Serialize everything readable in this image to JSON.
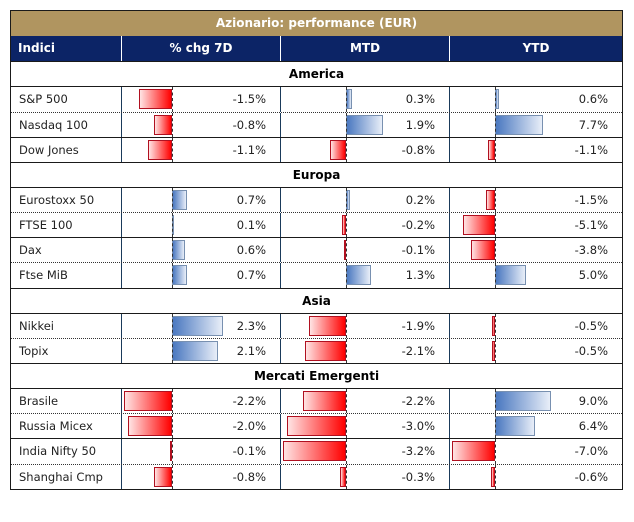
{
  "title": "Azionario: performance (EUR)",
  "columns": [
    "Indici",
    "% chg 7D",
    "MTD",
    "YTD"
  ],
  "colors": {
    "header_gold": "#b09560",
    "header_navy": "#0c2466",
    "negative": "#ff0000",
    "positive": "#4a78c0"
  },
  "chart_data": {
    "type": "table",
    "title": "Azionario: performance (EUR)",
    "columns": [
      "Indici",
      "% chg 7D",
      "MTD",
      "YTD"
    ],
    "unit": "%",
    "sections": [
      {
        "name": "America",
        "rows": [
          {
            "name": "S&P 500",
            "d7": -1.5,
            "mtd": 0.3,
            "ytd": 0.6
          },
          {
            "name": "Nasdaq 100",
            "d7": -0.8,
            "mtd": 1.9,
            "ytd": 7.7
          },
          {
            "name": "Dow Jones",
            "d7": -1.1,
            "mtd": -0.8,
            "ytd": -1.1
          }
        ]
      },
      {
        "name": "Europa",
        "rows": [
          {
            "name": "Eurostoxx 50",
            "d7": 0.7,
            "mtd": 0.2,
            "ytd": -1.5
          },
          {
            "name": "FTSE 100",
            "d7": 0.1,
            "mtd": -0.2,
            "ytd": -5.1
          },
          {
            "name": "Dax",
            "d7": 0.6,
            "mtd": -0.1,
            "ytd": -3.8
          },
          {
            "name": "Ftse MiB",
            "d7": 0.7,
            "mtd": 1.3,
            "ytd": 5.0
          }
        ]
      },
      {
        "name": "Asia",
        "rows": [
          {
            "name": "Nikkei",
            "d7": 2.3,
            "mtd": -1.9,
            "ytd": -0.5
          },
          {
            "name": "Topix",
            "d7": 2.1,
            "mtd": -2.1,
            "ytd": -0.5
          }
        ]
      },
      {
        "name": "Mercati Emergenti",
        "rows": [
          {
            "name": "Brasile",
            "d7": -2.2,
            "mtd": -2.2,
            "ytd": 9.0
          },
          {
            "name": "Russia Micex",
            "d7": -2.0,
            "mtd": -3.0,
            "ytd": 6.4
          },
          {
            "name": "India Nifty 50",
            "d7": -0.1,
            "mtd": -3.2,
            "ytd": -7.0
          },
          {
            "name": "Shanghai Cmp",
            "d7": -0.8,
            "mtd": -0.3,
            "ytd": -0.6
          }
        ]
      }
    ]
  }
}
